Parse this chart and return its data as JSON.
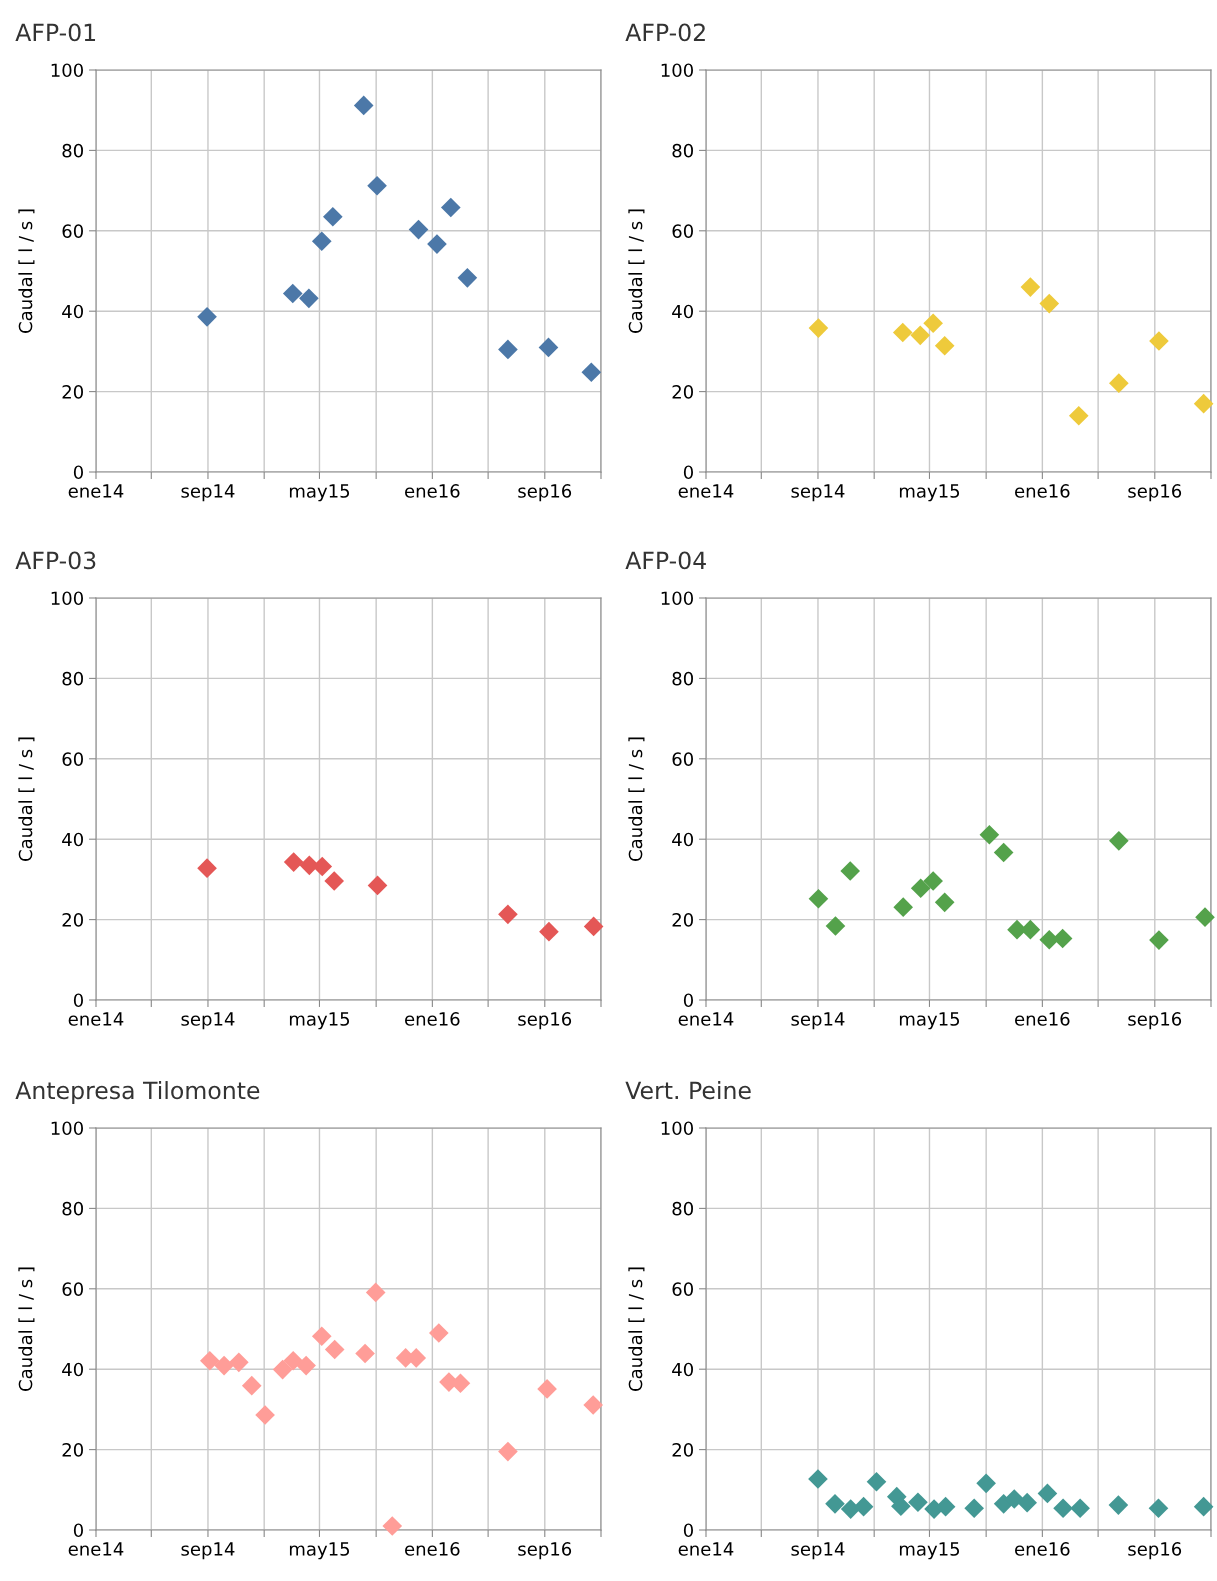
{
  "chart_data": [
    {
      "type": "scatter",
      "title": "AFP-01",
      "ylabel": "Caudal [ l / s ]",
      "color": "#4c78a8",
      "marker": "diamond",
      "grid": true,
      "x": [
        "2014-08-30",
        "2015-03-04",
        "2015-04-08",
        "2015-05-06",
        "2015-05-30",
        "2015-08-05",
        "2015-09-03",
        "2015-12-02",
        "2016-01-11",
        "2016-02-10",
        "2016-03-17",
        "2016-06-13",
        "2016-09-09",
        "2016-12-11"
      ],
      "values": [
        38.6,
        44.4,
        43.2,
        57.4,
        63.5,
        91.2,
        71.2,
        60.3,
        56.7,
        65.8,
        48.3,
        30.5,
        31,
        24.8
      ],
      "xlim": [
        "2014-01-01",
        "2017-01-01"
      ],
      "ylim": [
        0,
        100
      ],
      "yticks": [
        0,
        20,
        40,
        60,
        80,
        100
      ],
      "xticks": [
        {
          "value": "2014-01-01",
          "label": "ene14"
        },
        {
          "value": "2014-05-01",
          "label": null
        },
        {
          "value": "2014-09-01",
          "label": "sep14"
        },
        {
          "value": "2015-01-01",
          "label": null
        },
        {
          "value": "2015-05-01",
          "label": "may15"
        },
        {
          "value": "2015-09-01",
          "label": null
        },
        {
          "value": "2016-01-01",
          "label": "ene16"
        },
        {
          "value": "2016-05-01",
          "label": null
        },
        {
          "value": "2016-09-01",
          "label": "sep16"
        },
        {
          "value": "2017-01-01",
          "label": null
        }
      ]
    },
    {
      "type": "scatter",
      "title": "AFP-02",
      "ylabel": "Caudal [ l / s ]",
      "color": "#eeca3b",
      "marker": "diamond",
      "grid": true,
      "x": [
        "2014-09-02",
        "2015-03-04",
        "2015-04-11",
        "2015-05-09",
        "2015-06-03",
        "2015-12-06",
        "2016-01-16",
        "2016-03-20",
        "2016-06-15",
        "2016-09-10",
        "2016-12-16"
      ],
      "values": [
        35.8,
        34.7,
        34,
        37,
        31.4,
        46,
        41.9,
        14,
        22.1,
        32.6,
        17
      ],
      "xlim": [
        "2014-01-01",
        "2017-01-01"
      ],
      "ylim": [
        0,
        100
      ],
      "yticks": [
        0,
        20,
        40,
        60,
        80,
        100
      ],
      "xticks": [
        {
          "value": "2014-01-01",
          "label": "ene14"
        },
        {
          "value": "2014-05-01",
          "label": null
        },
        {
          "value": "2014-09-01",
          "label": "sep14"
        },
        {
          "value": "2015-01-01",
          "label": null
        },
        {
          "value": "2015-05-01",
          "label": "may15"
        },
        {
          "value": "2015-09-01",
          "label": null
        },
        {
          "value": "2016-01-01",
          "label": "ene16"
        },
        {
          "value": "2016-05-01",
          "label": null
        },
        {
          "value": "2016-09-01",
          "label": "sep16"
        },
        {
          "value": "2017-01-01",
          "label": null
        }
      ]
    },
    {
      "type": "scatter",
      "title": "AFP-03",
      "ylabel": "Caudal [ l / s ]",
      "color": "#e45756",
      "marker": "diamond",
      "grid": true,
      "x": [
        "2014-08-30",
        "2015-03-06",
        "2015-04-09",
        "2015-05-07",
        "2015-06-02",
        "2015-09-04",
        "2016-06-13",
        "2016-09-10",
        "2016-12-16"
      ],
      "values": [
        32.8,
        34.3,
        33.5,
        33.2,
        29.6,
        28.5,
        21.3,
        17,
        18.3
      ],
      "xlim": [
        "2014-01-01",
        "2017-01-01"
      ],
      "ylim": [
        0,
        100
      ],
      "yticks": [
        0,
        20,
        40,
        60,
        80,
        100
      ],
      "xticks": [
        {
          "value": "2014-01-01",
          "label": "ene14"
        },
        {
          "value": "2014-05-01",
          "label": null
        },
        {
          "value": "2014-09-01",
          "label": "sep14"
        },
        {
          "value": "2015-01-01",
          "label": null
        },
        {
          "value": "2015-05-01",
          "label": "may15"
        },
        {
          "value": "2015-09-01",
          "label": null
        },
        {
          "value": "2016-01-01",
          "label": "ene16"
        },
        {
          "value": "2016-05-01",
          "label": null
        },
        {
          "value": "2016-09-01",
          "label": "sep16"
        },
        {
          "value": "2017-01-01",
          "label": null
        }
      ]
    },
    {
      "type": "scatter",
      "title": "AFP-04",
      "ylabel": "Caudal [ l / s ]",
      "color": "#54a24b",
      "marker": "diamond",
      "grid": true,
      "x": [
        "2014-09-02",
        "2014-10-09",
        "2014-11-10",
        "2015-03-05",
        "2015-04-12",
        "2015-05-09",
        "2015-06-03",
        "2015-09-08",
        "2015-10-09",
        "2015-11-07",
        "2015-12-06",
        "2016-01-16",
        "2016-02-14",
        "2016-06-15",
        "2016-09-10",
        "2016-12-19"
      ],
      "values": [
        25.2,
        18.4,
        32.1,
        23.1,
        27.8,
        29.6,
        24.3,
        41.1,
        36.7,
        17.5,
        17.5,
        15,
        15.3,
        39.6,
        14.9,
        20.6
      ],
      "xlim": [
        "2014-01-01",
        "2017-01-01"
      ],
      "ylim": [
        0,
        100
      ],
      "yticks": [
        0,
        20,
        40,
        60,
        80,
        100
      ],
      "xticks": [
        {
          "value": "2014-01-01",
          "label": "ene14"
        },
        {
          "value": "2014-05-01",
          "label": null
        },
        {
          "value": "2014-09-01",
          "label": "sep14"
        },
        {
          "value": "2015-01-01",
          "label": null
        },
        {
          "value": "2015-05-01",
          "label": "may15"
        },
        {
          "value": "2015-09-01",
          "label": null
        },
        {
          "value": "2016-01-01",
          "label": "ene16"
        },
        {
          "value": "2016-05-01",
          "label": null
        },
        {
          "value": "2016-09-01",
          "label": "sep16"
        },
        {
          "value": "2017-01-01",
          "label": null
        }
      ]
    },
    {
      "type": "scatter",
      "title": "Antepresa Tilomonte",
      "ylabel": "Caudal [ l / s ]",
      "color": "#ff9d98",
      "marker": "diamond",
      "grid": true,
      "x": [
        "2014-09-05",
        "2014-10-06",
        "2014-11-07",
        "2014-12-05",
        "2015-01-03",
        "2015-02-10",
        "2015-03-05",
        "2015-04-02",
        "2015-05-06",
        "2015-06-03",
        "2015-08-08",
        "2015-08-31",
        "2015-10-06",
        "2015-11-04",
        "2015-11-27",
        "2016-01-15",
        "2016-02-06",
        "2016-03-02",
        "2016-06-13",
        "2016-09-06",
        "2016-12-15"
      ],
      "values": [
        42.1,
        40.9,
        41.7,
        35.9,
        28.6,
        39.9,
        42.1,
        40.9,
        48.2,
        44.9,
        43.9,
        59.1,
        1,
        42.8,
        42.8,
        49,
        36.8,
        36.5,
        19.5,
        35.1,
        31.1
      ],
      "xlim": [
        "2014-01-01",
        "2017-01-01"
      ],
      "ylim": [
        0,
        100
      ],
      "yticks": [
        0,
        20,
        40,
        60,
        80,
        100
      ],
      "xticks": [
        {
          "value": "2014-01-01",
          "label": "ene14"
        },
        {
          "value": "2014-05-01",
          "label": null
        },
        {
          "value": "2014-09-01",
          "label": "sep14"
        },
        {
          "value": "2015-01-01",
          "label": null
        },
        {
          "value": "2015-05-01",
          "label": "may15"
        },
        {
          "value": "2015-09-01",
          "label": null
        },
        {
          "value": "2016-01-01",
          "label": "ene16"
        },
        {
          "value": "2016-05-01",
          "label": null
        },
        {
          "value": "2016-09-01",
          "label": "sep16"
        },
        {
          "value": "2017-01-01",
          "label": null
        }
      ]
    },
    {
      "type": "scatter",
      "title": "Vert. Peine",
      "ylabel": "Caudal [ l / s ]",
      "color": "#439894",
      "marker": "diamond",
      "grid": true,
      "x": [
        "2014-09-01",
        "2014-10-08",
        "2014-11-11",
        "2014-12-09",
        "2015-01-06",
        "2015-02-19",
        "2015-02-28",
        "2015-04-06",
        "2015-05-11",
        "2015-06-05",
        "2015-08-06",
        "2015-09-01",
        "2015-10-09",
        "2015-11-01",
        "2015-11-29",
        "2016-01-12",
        "2016-02-15",
        "2016-03-23",
        "2016-06-14",
        "2016-09-09",
        "2016-12-16"
      ],
      "values": [
        12.7,
        6.5,
        5.2,
        5.8,
        12,
        8.3,
        5.9,
        6.9,
        5.2,
        5.8,
        5.4,
        11.6,
        6.5,
        7.7,
        6.8,
        9.1,
        5.4,
        5.4,
        6.2,
        5.4,
        5.8
      ],
      "xlim": [
        "2014-01-01",
        "2017-01-01"
      ],
      "ylim": [
        0,
        100
      ],
      "yticks": [
        0,
        20,
        40,
        60,
        80,
        100
      ],
      "xticks": [
        {
          "value": "2014-01-01",
          "label": "ene14"
        },
        {
          "value": "2014-05-01",
          "label": null
        },
        {
          "value": "2014-09-01",
          "label": "sep14"
        },
        {
          "value": "2015-01-01",
          "label": null
        },
        {
          "value": "2015-05-01",
          "label": "may15"
        },
        {
          "value": "2015-09-01",
          "label": null
        },
        {
          "value": "2016-01-01",
          "label": "ene16"
        },
        {
          "value": "2016-05-01",
          "label": null
        },
        {
          "value": "2016-09-01",
          "label": "sep16"
        },
        {
          "value": "2017-01-01",
          "label": null
        }
      ]
    }
  ]
}
